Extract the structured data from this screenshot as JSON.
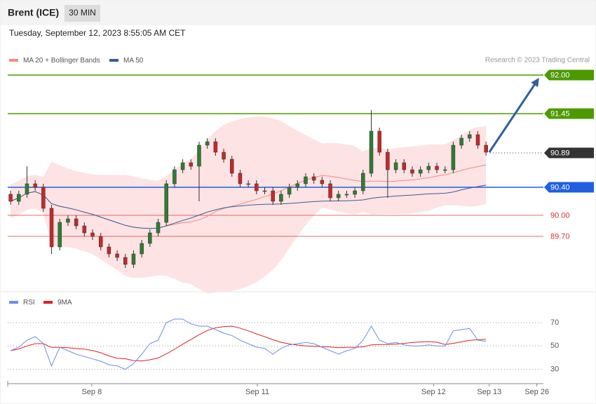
{
  "header": {
    "symbol": "Brent (ICE)",
    "interval": "30 MIN",
    "date": "Tuesday, September 12, 2023 8:55:05 AM CET"
  },
  "chart_data": [
    {
      "type": "candlestick",
      "legend": [
        {
          "name": "MA 20 + Bollinger Bands",
          "color": "#f28b82"
        },
        {
          "name": "MA 50",
          "color": "#3b5b9a"
        }
      ],
      "credit": "Research © 2023 Trading Central",
      "up_color": "#2e7d32",
      "down_color": "#c62828",
      "band_color": "#fde3e3",
      "open": [
        90.3,
        90.2,
        90.3,
        90.45,
        90.4,
        90.1,
        89.55,
        89.9,
        89.95,
        89.85,
        89.75,
        89.7,
        89.55,
        89.45,
        89.4,
        89.3,
        89.45,
        89.6,
        89.75,
        89.9,
        90.45,
        90.65,
        90.75,
        90.7,
        91.0,
        91.05,
        90.9,
        90.8,
        90.6,
        90.45,
        90.45,
        90.35,
        90.35,
        90.2,
        90.3,
        90.4,
        90.45,
        90.55,
        90.5,
        90.45,
        90.25,
        90.3,
        90.3,
        90.35,
        90.6,
        91.2,
        90.9,
        90.65,
        90.75,
        90.65,
        90.6,
        90.65,
        90.7,
        90.65,
        90.65,
        91.0,
        91.1,
        91.15,
        91.0
      ],
      "high": [
        90.35,
        90.35,
        90.7,
        90.5,
        90.45,
        90.15,
        89.95,
        90.0,
        90.0,
        89.9,
        89.8,
        89.75,
        89.6,
        89.5,
        89.45,
        89.5,
        89.65,
        89.8,
        89.95,
        90.5,
        90.7,
        90.8,
        90.8,
        91.05,
        91.1,
        91.1,
        90.95,
        90.85,
        90.65,
        90.5,
        90.5,
        90.4,
        90.4,
        90.35,
        90.45,
        90.5,
        90.6,
        90.6,
        90.55,
        90.5,
        90.35,
        90.35,
        90.4,
        90.65,
        91.5,
        91.25,
        90.95,
        90.8,
        90.8,
        90.7,
        90.7,
        90.75,
        90.75,
        90.7,
        91.05,
        91.15,
        91.2,
        91.2,
        91.05
      ],
      "low": [
        90.15,
        90.15,
        90.25,
        90.35,
        90.05,
        89.45,
        89.5,
        89.85,
        89.8,
        89.7,
        89.65,
        89.5,
        89.4,
        89.35,
        89.25,
        89.25,
        89.4,
        89.55,
        89.7,
        89.85,
        90.4,
        90.6,
        90.65,
        90.2,
        90.95,
        90.85,
        90.75,
        90.55,
        90.4,
        90.4,
        90.3,
        90.3,
        90.15,
        90.15,
        90.25,
        90.35,
        90.4,
        90.45,
        90.4,
        90.2,
        90.2,
        90.25,
        90.25,
        90.3,
        90.55,
        90.85,
        90.25,
        90.6,
        90.6,
        90.55,
        90.55,
        90.6,
        90.6,
        90.6,
        90.6,
        90.95,
        91.05,
        90.95,
        90.85
      ],
      "close": [
        90.2,
        90.3,
        90.45,
        90.4,
        90.1,
        89.55,
        89.9,
        89.95,
        89.85,
        89.75,
        89.7,
        89.55,
        89.45,
        89.4,
        89.3,
        89.45,
        89.6,
        89.75,
        89.9,
        90.45,
        90.65,
        90.75,
        90.7,
        91.0,
        91.05,
        90.9,
        90.8,
        90.6,
        90.45,
        90.45,
        90.35,
        90.35,
        90.2,
        90.3,
        90.4,
        90.45,
        90.55,
        90.5,
        90.45,
        90.25,
        90.3,
        90.3,
        90.35,
        90.6,
        91.2,
        90.9,
        90.65,
        90.75,
        90.65,
        90.6,
        90.65,
        90.7,
        90.65,
        90.65,
        91.0,
        91.1,
        91.15,
        91.0,
        90.9
      ],
      "xlim": [
        -0.35,
        65
      ],
      "ylim": [
        88.92,
        92.47
      ],
      "levels": [
        {
          "value": 92,
          "label": "92.00",
          "color": "#4c9a00",
          "box": true,
          "style": "solid"
        },
        {
          "value": 91.45,
          "label": "91.45",
          "color": "#4c9a00",
          "box": true,
          "style": "solid"
        },
        {
          "value": 90.89,
          "label": "90.89",
          "color": "#333333",
          "box": true,
          "style": "dotted"
        },
        {
          "value": 90.4,
          "label": "90.40",
          "color": "#1f5fe0",
          "box": true,
          "style": "solid"
        },
        {
          "value": 90,
          "label": "90.00",
          "color": "#d93030",
          "box": false,
          "style": "solid"
        },
        {
          "value": 89.7,
          "label": "89.70",
          "color": "#d93030",
          "box": false,
          "style": "solid"
        }
      ],
      "arrow": {
        "x": [
          58.4,
          64.7
        ],
        "y": [
          90.9,
          92.0
        ],
        "color": "#2f5f9e"
      }
    },
    {
      "type": "line",
      "series": [
        {
          "name": "RSI",
          "color": "#6a8ee8",
          "values": [
            46,
            49,
            55,
            58,
            52,
            33,
            49,
            46,
            43,
            41,
            39,
            37,
            34,
            33,
            30,
            35,
            43,
            52,
            55,
            70,
            73,
            73,
            69,
            67,
            67,
            64,
            61,
            59,
            55,
            52,
            49,
            48,
            43,
            48,
            51,
            52,
            53,
            52,
            49,
            46,
            43,
            46,
            48,
            55,
            67,
            55,
            52,
            53,
            51,
            50,
            50,
            51,
            50,
            50,
            63,
            64,
            65,
            55,
            54
          ]
        },
        {
          "name": "9MA",
          "color": "#e02020"
        }
      ],
      "xlim": [
        -0.35,
        65
      ],
      "ylim": [
        19,
        94
      ],
      "yticks": [
        70,
        50,
        30
      ],
      "xticks": [
        {
          "value": 9.9,
          "label": "Sep 8"
        },
        {
          "value": 30.1,
          "label": "Sep 11"
        },
        {
          "value": 51.6,
          "label": "Sep 12"
        },
        {
          "value": 58.4,
          "label": "Sep 13"
        },
        {
          "value": 64.2,
          "label": "Sep 26"
        }
      ]
    }
  ]
}
